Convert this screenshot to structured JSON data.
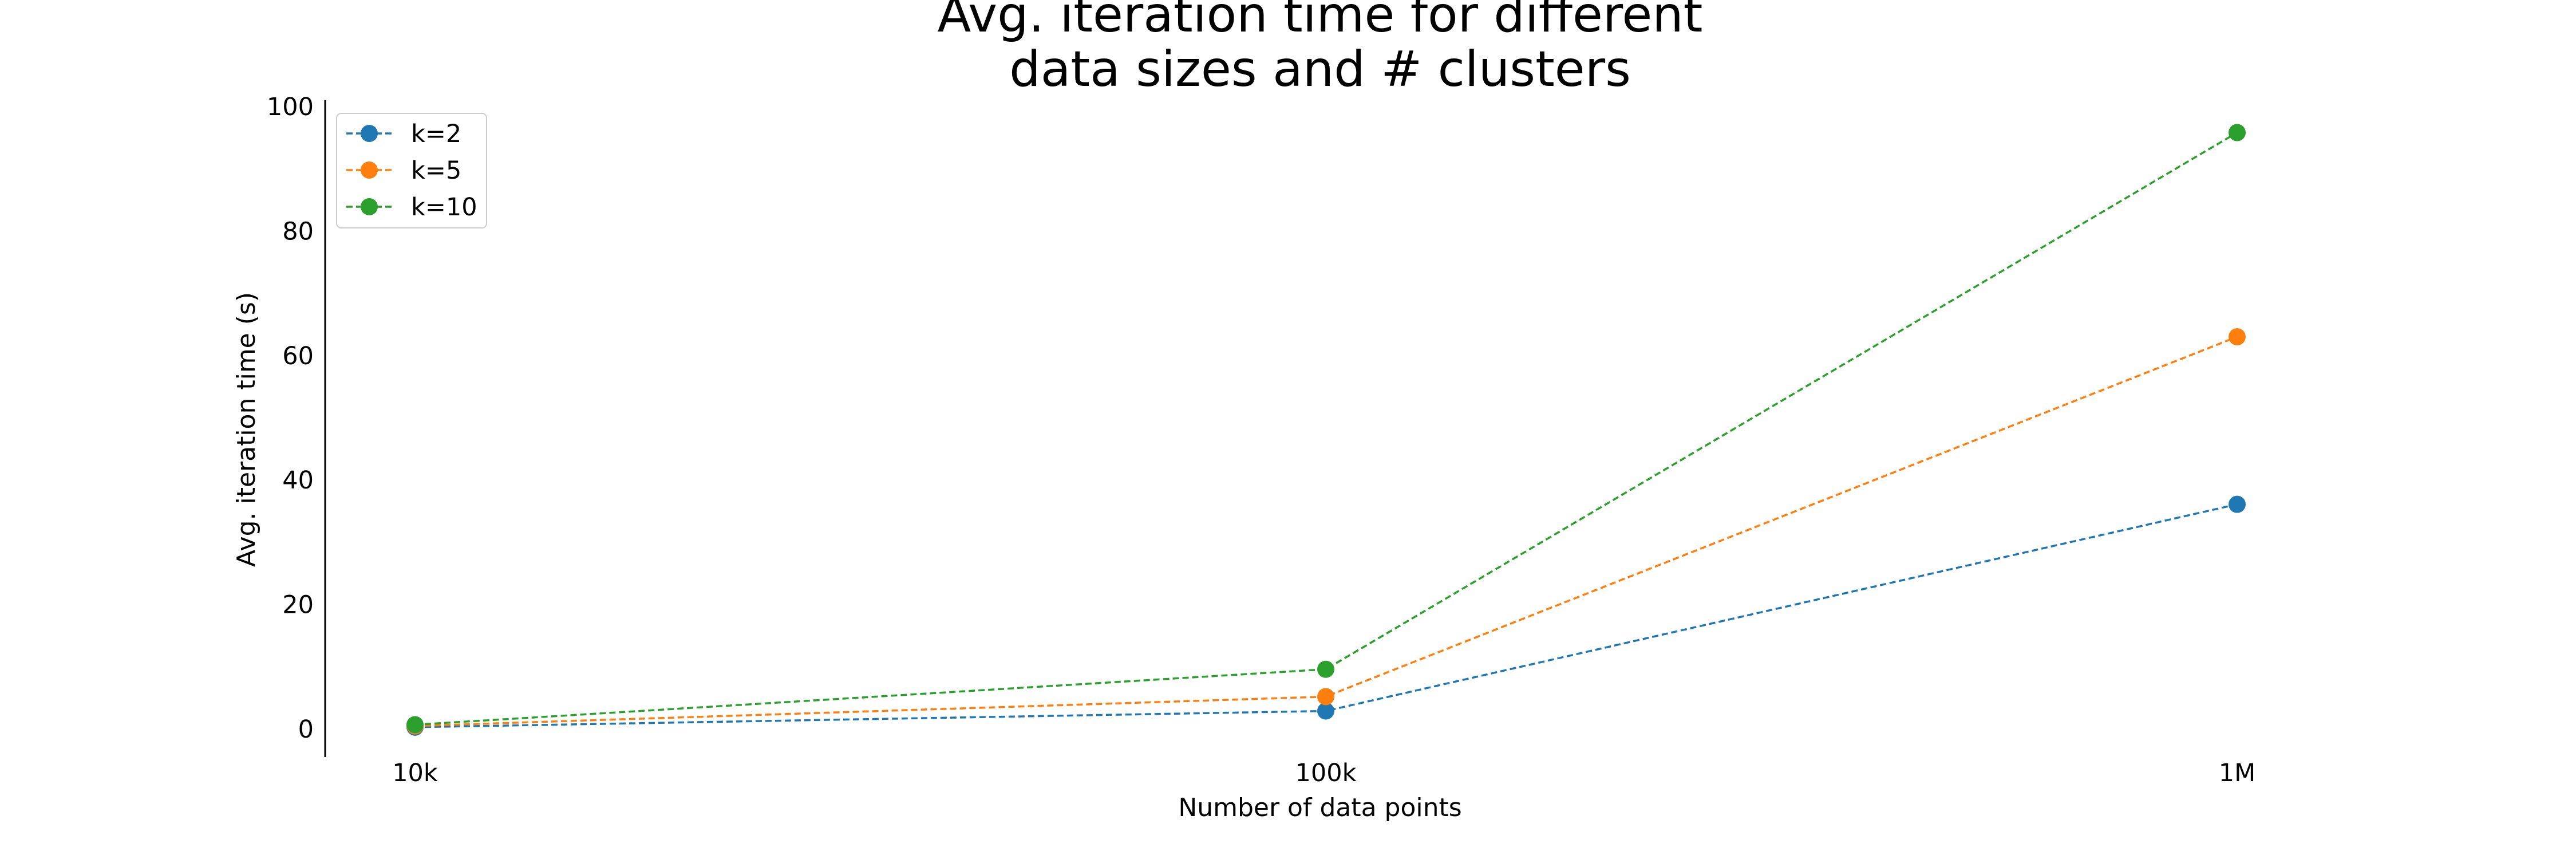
{
  "chart_data": {
    "type": "line",
    "title": "Avg. iteration time for different\ndata sizes and # clusters",
    "title_lines": [
      "Avg. iteration time for different",
      "data sizes and # clusters"
    ],
    "xlabel": "Number of data points",
    "ylabel": "Avg. iteration time (s)",
    "categories": [
      "10k",
      "100k",
      "1M"
    ],
    "yticks": [
      "0",
      "20",
      "40",
      "60",
      "80",
      "100"
    ],
    "ylim": [
      -4.5,
      101
    ],
    "grid": false,
    "legend_position": "top-left",
    "line_style": "dashed",
    "marker": "circle",
    "series": [
      {
        "name": "k=2",
        "color": "#1f77b4",
        "values": [
          0.3,
          2.9,
          36.1
        ]
      },
      {
        "name": "k=5",
        "color": "#ff7f0e",
        "values": [
          0.5,
          5.2,
          63.0
        ]
      },
      {
        "name": "k=10",
        "color": "#2ca02c",
        "values": [
          0.7,
          9.6,
          95.8
        ]
      }
    ]
  }
}
